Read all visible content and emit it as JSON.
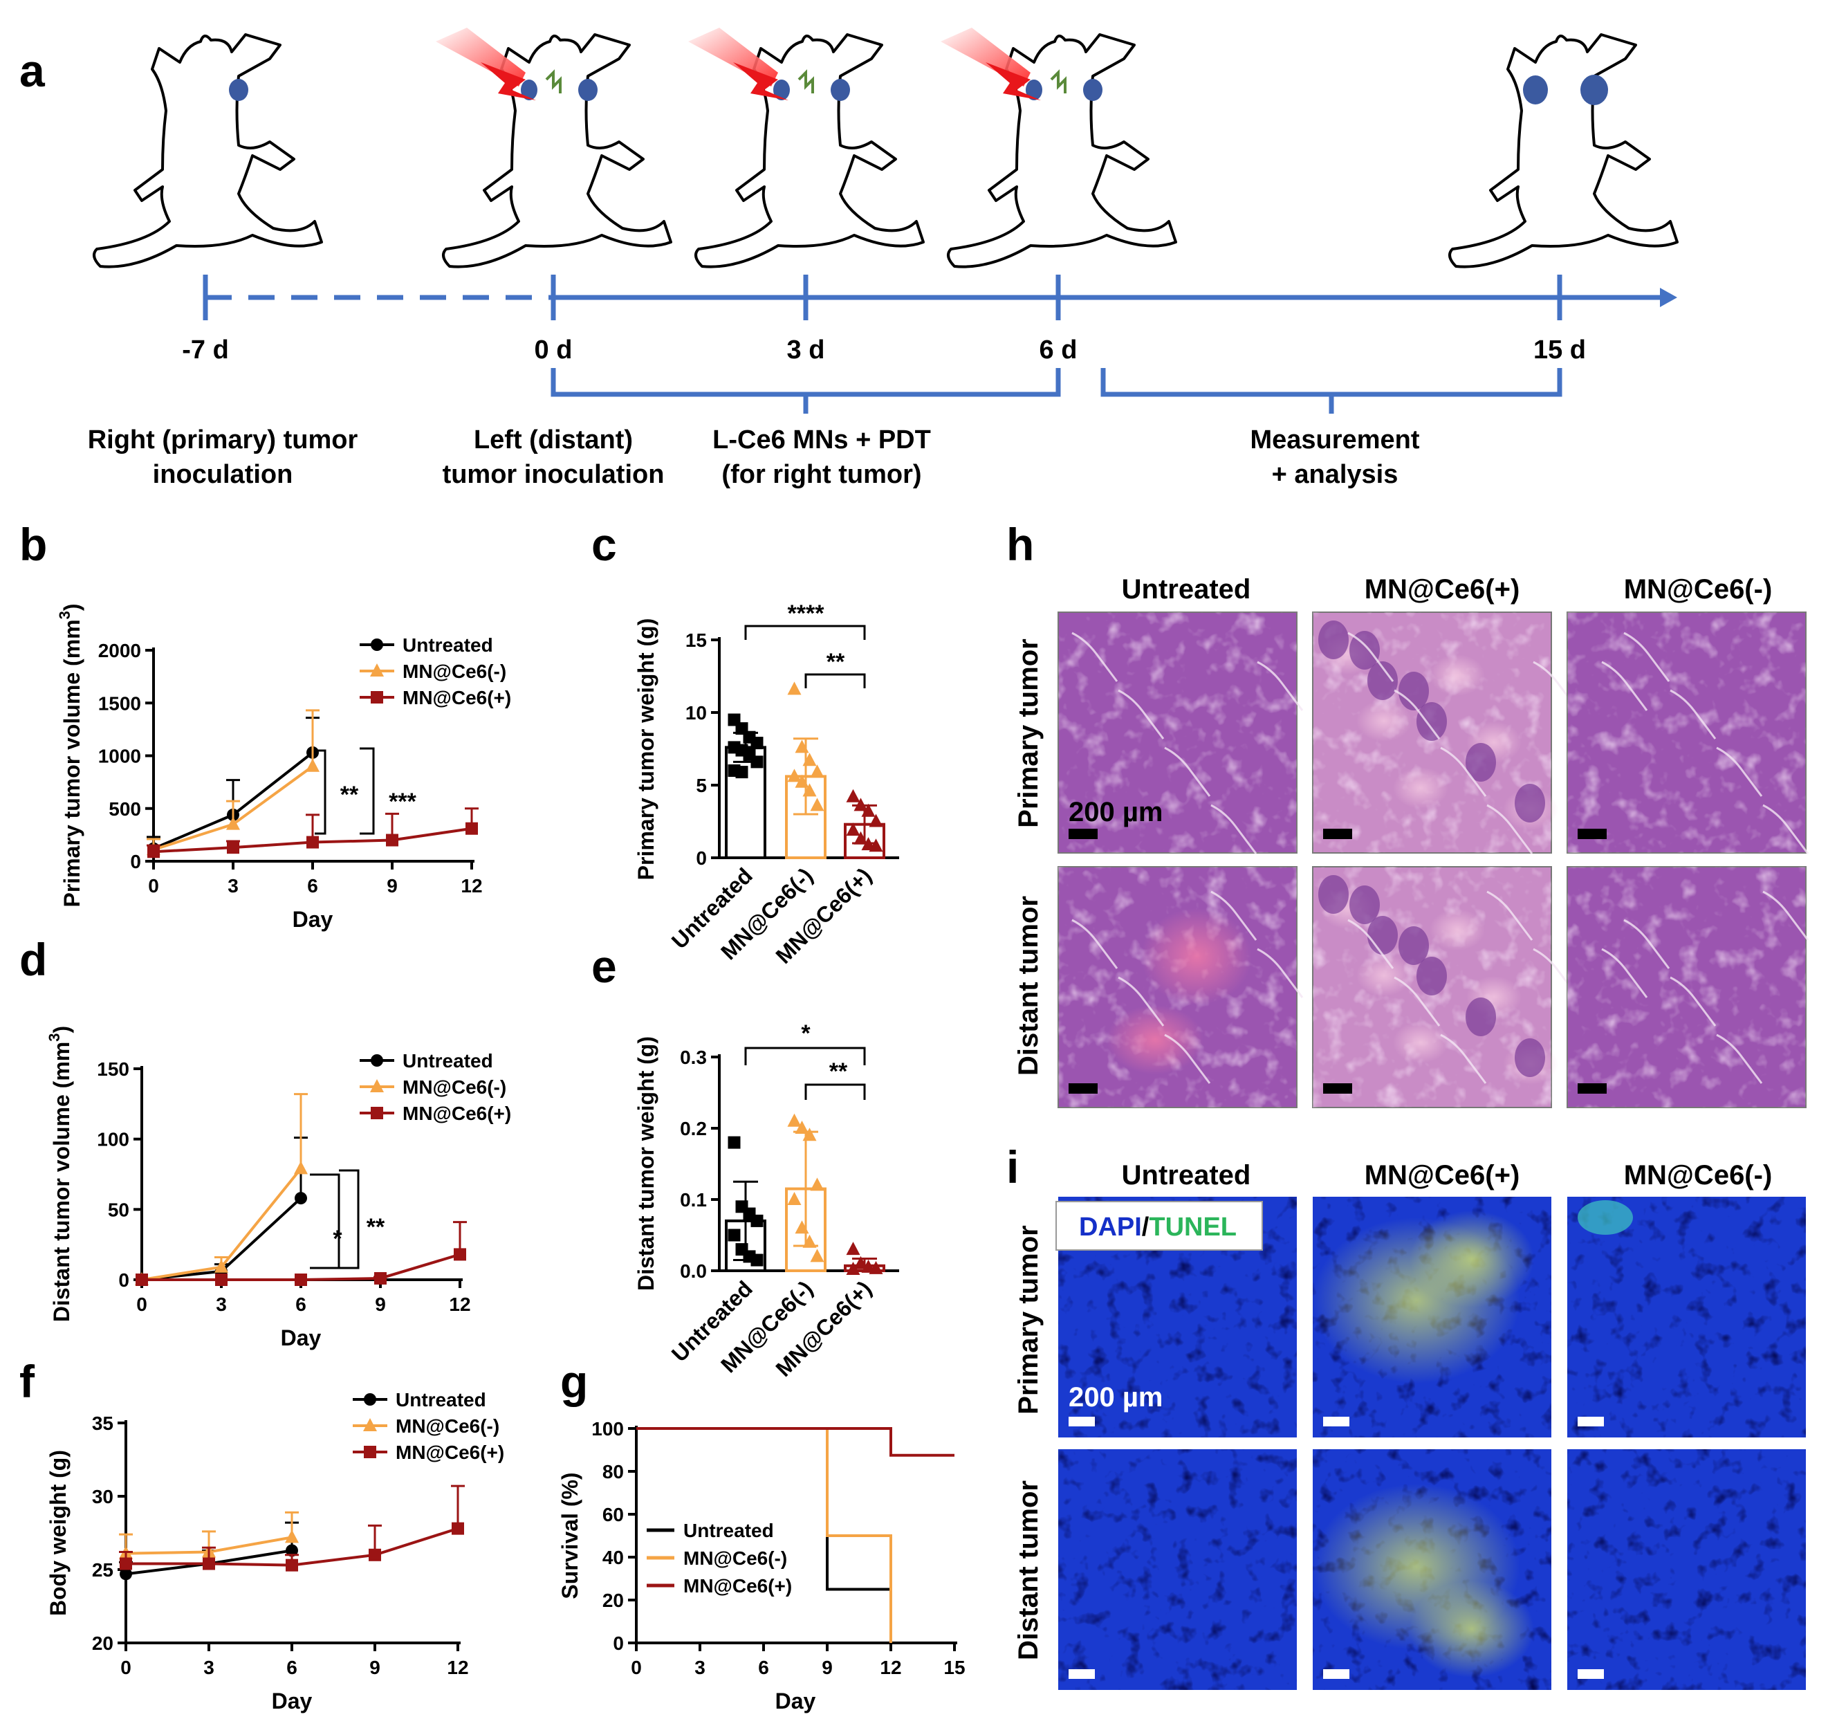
{
  "panel_letters": [
    "a",
    "b",
    "c",
    "d",
    "e",
    "f",
    "g",
    "h",
    "i"
  ],
  "timeline": {
    "days": [
      "-7 d",
      "0 d",
      "3 d",
      "6 d",
      "15 d"
    ],
    "label_primary": [
      "Right (primary) tumor",
      "inoculation"
    ],
    "label_distant": [
      "Left (distant)",
      "tumor inoculation"
    ],
    "label_treatment": [
      "L-Ce6 MNs + PDT",
      "(for right tumor)"
    ],
    "label_measure": [
      "Measurement",
      "+ analysis"
    ]
  },
  "colors": {
    "untreated": "#000000",
    "mn_minus": "#f5a445",
    "mn_plus": "#9b1414",
    "timeline": "#4472c4",
    "he_stain": "#a35fb5",
    "dapi": "#1530c8",
    "tunel": "#2bb55a"
  },
  "chart_data": [
    {
      "id": "b",
      "type": "line",
      "xlabel": "Day",
      "ylabel": "Primary tumor volume (mm³)",
      "xticks": [
        "0",
        "3",
        "6",
        "9",
        "12"
      ],
      "yticks": [
        "0",
        "500",
        "1000",
        "1500",
        "2000"
      ],
      "xlim": [
        0,
        12
      ],
      "ylim": [
        0,
        2000
      ],
      "legend_position": "top-right",
      "series": [
        {
          "name": "Untreated",
          "color": "#000000",
          "marker": "circle",
          "x": [
            0,
            3,
            6
          ],
          "y": [
            120,
            440,
            1030
          ],
          "err": [
            110,
            330,
            330
          ]
        },
        {
          "name": "MN@Ce6(-)",
          "color": "#f5a445",
          "marker": "triangle",
          "x": [
            0,
            3,
            6
          ],
          "y": [
            110,
            350,
            900
          ],
          "err": [
            100,
            220,
            530
          ]
        },
        {
          "name": "MN@Ce6(+)",
          "color": "#9b1414",
          "marker": "square",
          "x": [
            0,
            3,
            6,
            9,
            12
          ],
          "y": [
            90,
            130,
            180,
            200,
            310
          ],
          "err": [
            60,
            60,
            260,
            250,
            190
          ]
        }
      ],
      "significance": [
        "**",
        "***"
      ]
    },
    {
      "id": "c",
      "type": "bar",
      "ylabel": "Primary tumor weight (g)",
      "categories": [
        "Untreated",
        "MN@Ce6(-)",
        "MN@Ce6(+)"
      ],
      "values": [
        7.6,
        5.6,
        2.3
      ],
      "errors": [
        1.0,
        2.6,
        1.3
      ],
      "yticks": [
        "0",
        "5",
        "10",
        "15"
      ],
      "ylim": [
        0,
        15
      ],
      "points": [
        [
          9.5,
          8.9,
          8.3,
          7.9,
          7.6,
          7.4,
          7.1,
          6.6,
          6.0,
          5.9
        ],
        [
          11.6,
          7.6,
          6.7,
          5.9,
          5.6,
          5.2,
          4.6,
          3.6
        ],
        [
          4.2,
          3.6,
          3.2,
          2.5,
          1.9,
          1.3,
          0.9,
          0.8
        ]
      ],
      "significance": [
        "****",
        "**"
      ]
    },
    {
      "id": "d",
      "type": "line",
      "xlabel": "Day",
      "ylabel": "Distant tumor volume (mm³)",
      "xticks": [
        "0",
        "3",
        "6",
        "9",
        "12"
      ],
      "yticks": [
        "0",
        "50",
        "100",
        "150"
      ],
      "xlim": [
        0,
        12
      ],
      "ylim": [
        0,
        150
      ],
      "legend_position": "top-right",
      "series": [
        {
          "name": "Untreated",
          "color": "#000000",
          "marker": "circle",
          "x": [
            0,
            3,
            6
          ],
          "y": [
            0,
            6,
            58
          ],
          "err": [
            0,
            5,
            43
          ]
        },
        {
          "name": "MN@Ce6(-)",
          "color": "#f5a445",
          "marker": "triangle",
          "x": [
            0,
            3,
            6
          ],
          "y": [
            0,
            9,
            79
          ],
          "err": [
            0,
            7,
            53
          ]
        },
        {
          "name": "MN@Ce6(+)",
          "color": "#9b1414",
          "marker": "square",
          "x": [
            0,
            3,
            6,
            9,
            12
          ],
          "y": [
            0,
            0,
            0,
            1,
            18
          ],
          "err": [
            0,
            0,
            0,
            1,
            23
          ]
        }
      ],
      "significance": [
        "*",
        "**"
      ]
    },
    {
      "id": "e",
      "type": "bar",
      "ylabel": "Distant tumor weight (g)",
      "categories": [
        "Untreated",
        "MN@Ce6(-)",
        "MN@Ce6(+)"
      ],
      "values": [
        0.07,
        0.115,
        0.007
      ],
      "errors": [
        0.055,
        0.08,
        0.01
      ],
      "yticks": [
        "0.0",
        "0.1",
        "0.2",
        "0.3"
      ],
      "ylim": [
        0,
        0.3
      ],
      "points": [
        [
          0.18,
          0.09,
          0.08,
          0.07,
          0.05,
          0.03,
          0.02,
          0.015
        ],
        [
          0.21,
          0.2,
          0.19,
          0.12,
          0.1,
          0.06,
          0.04,
          0.02
        ],
        [
          0.03,
          0.01,
          0.005,
          0.003,
          0.002
        ]
      ],
      "significance": [
        "*",
        "**"
      ]
    },
    {
      "id": "f",
      "type": "line",
      "xlabel": "Day",
      "ylabel": "Body weight (g)",
      "xticks": [
        "0",
        "3",
        "6",
        "9",
        "12"
      ],
      "yticks": [
        "20",
        "25",
        "30",
        "35"
      ],
      "xlim": [
        0,
        12
      ],
      "ylim": [
        20,
        35
      ],
      "legend_position": "top-right",
      "series": [
        {
          "name": "Untreated",
          "color": "#000000",
          "marker": "circle",
          "x": [
            0,
            3,
            6
          ],
          "y": [
            24.7,
            25.4,
            26.3
          ],
          "err": [
            0.8,
            0.9,
            1.9
          ]
        },
        {
          "name": "MN@Ce6(-)",
          "color": "#f5a445",
          "marker": "triangle",
          "x": [
            0,
            3,
            6
          ],
          "y": [
            26.1,
            26.2,
            27.2
          ],
          "err": [
            1.3,
            1.4,
            1.7
          ]
        },
        {
          "name": "MN@Ce6(+)",
          "color": "#9b1414",
          "marker": "square",
          "x": [
            0,
            3,
            6,
            9,
            12
          ],
          "y": [
            25.4,
            25.4,
            25.3,
            26.0,
            27.8
          ],
          "err": [
            0.8,
            1.1,
            0.7,
            2.0,
            2.9
          ]
        }
      ]
    },
    {
      "id": "g",
      "type": "line",
      "xlabel": "Day",
      "ylabel": "Survival (%)",
      "xticks": [
        "0",
        "3",
        "6",
        "9",
        "12",
        "15"
      ],
      "yticks": [
        "0",
        "20",
        "40",
        "60",
        "80",
        "100"
      ],
      "xlim": [
        0,
        15
      ],
      "ylim": [
        0,
        100
      ],
      "legend_position": "bottom-left",
      "series": [
        {
          "name": "Untreated",
          "color": "#000000",
          "x": [
            0,
            9,
            9,
            12,
            12
          ],
          "y": [
            100,
            100,
            25,
            25,
            0
          ]
        },
        {
          "name": "MN@Ce6(-)",
          "color": "#f5a445",
          "x": [
            0,
            9,
            9,
            12,
            12
          ],
          "y": [
            100,
            100,
            50,
            50,
            0
          ]
        },
        {
          "name": "MN@Ce6(+)",
          "color": "#9b1414",
          "x": [
            0,
            12,
            12,
            15
          ],
          "y": [
            100,
            100,
            87.5,
            87.5
          ]
        }
      ]
    }
  ],
  "histology": {
    "columns": [
      "Untreated",
      "MN@Ce6(+)",
      "MN@Ce6(-)"
    ],
    "rows": [
      "Primary tumor",
      "Distant tumor"
    ],
    "scale_bar": "200 µm",
    "stain_dapi": "DAPI",
    "stain_slash": "/",
    "stain_tunel": "TUNEL"
  }
}
